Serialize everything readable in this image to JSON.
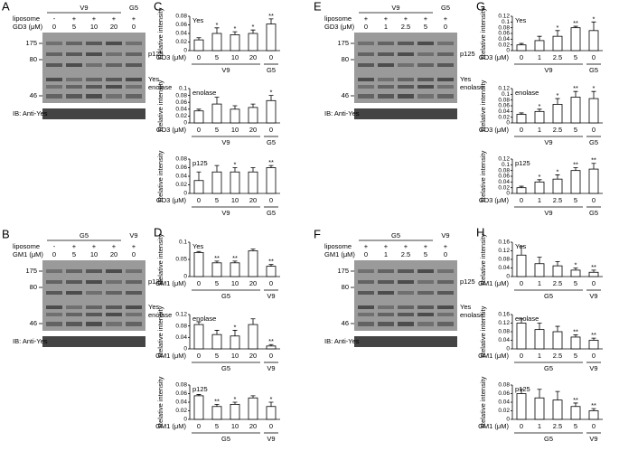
{
  "blots": [
    {
      "letter": "A",
      "header": [
        {
          "label": "V9",
          "count": 4
        },
        {
          "label": "G5",
          "count": 1
        }
      ],
      "rows": [
        {
          "label": "liposome",
          "cells": [
            "-",
            "+",
            "+",
            "+",
            "+"
          ]
        },
        {
          "label": "GD3 (μM)",
          "cells": [
            "0",
            "5",
            "10",
            "20",
            "0"
          ]
        }
      ],
      "markers": [
        "175",
        "80",
        "46"
      ],
      "bands": [
        "p125",
        "Yes",
        "enolase"
      ],
      "ib": "IB: Anti-Yes"
    },
    {
      "letter": "B",
      "header": [
        {
          "label": "G5",
          "count": 4
        },
        {
          "label": "V9",
          "count": 1
        }
      ],
      "rows": [
        {
          "label": "liposome",
          "cells": [
            "-",
            "+",
            "+",
            "+",
            "+"
          ]
        },
        {
          "label": "GM1 (μM)",
          "cells": [
            "0",
            "5",
            "10",
            "20",
            "0"
          ]
        }
      ],
      "markers": [
        "175",
        "80",
        "46"
      ],
      "bands": [
        "p125",
        "Yes",
        "enolase"
      ],
      "ib": "IB: Anti-Yes"
    },
    {
      "letter": "E",
      "header": [
        {
          "label": "V9",
          "count": 4
        },
        {
          "label": "G5",
          "count": 1
        }
      ],
      "rows": [
        {
          "label": "liposome",
          "cells": [
            "+",
            "+",
            "+",
            "+",
            "+"
          ]
        },
        {
          "label": "GD3 (μM)",
          "cells": [
            "0",
            "1",
            "2.5",
            "5",
            "0"
          ]
        }
      ],
      "markers": [
        "175",
        "80",
        "46"
      ],
      "bands": [
        "p125",
        "Yes",
        "enolase"
      ],
      "ib": "IB: Anti-Yes"
    },
    {
      "letter": "F",
      "header": [
        {
          "label": "G5",
          "count": 4
        },
        {
          "label": "V9",
          "count": 1
        }
      ],
      "rows": [
        {
          "label": "liposome",
          "cells": [
            "+",
            "+",
            "+",
            "+",
            "+"
          ]
        },
        {
          "label": "GM1 (μM)",
          "cells": [
            "0",
            "1",
            "2.5",
            "5",
            "0"
          ]
        }
      ],
      "markers": [
        "175",
        "80",
        "46"
      ],
      "bands": [
        "p125",
        "Yes",
        "enolase"
      ],
      "ib": "IB: Anti-Yes"
    }
  ],
  "chart_data": [
    {
      "type": "bar",
      "panel": "C",
      "ylabel": "Relative intensity",
      "label": "Yes",
      "xlabel": "GD3 (μM)",
      "categories": [
        "0",
        "5",
        "10",
        "20",
        "0"
      ],
      "groups": [
        {
          "label": "V9",
          "count": 4
        },
        {
          "label": "G5",
          "count": 1
        }
      ],
      "values": [
        0.025,
        0.04,
        0.037,
        0.04,
        0.062
      ],
      "errors": [
        0.005,
        0.013,
        0.007,
        0.008,
        0.012
      ],
      "significance": [
        null,
        "*",
        "*",
        "*",
        "**"
      ],
      "ylim": [
        0,
        0.08
      ],
      "yticks": [
        0,
        0.02,
        0.04,
        0.06,
        0.08
      ],
      "color": "#ffffff"
    },
    {
      "type": "bar",
      "ylabel": "Relative intensity",
      "label": "enolase",
      "xlabel": "GD3 (μM)",
      "categories": [
        "0",
        "5",
        "10",
        "20",
        "0"
      ],
      "groups": [
        {
          "label": "V9",
          "count": 4
        },
        {
          "label": "G5",
          "count": 1
        }
      ],
      "values": [
        0.035,
        0.055,
        0.04,
        0.045,
        0.065
      ],
      "errors": [
        0.005,
        0.02,
        0.01,
        0.01,
        0.015
      ],
      "significance": [
        null,
        null,
        null,
        null,
        "*"
      ],
      "ylim": [
        0,
        0.1
      ],
      "yticks": [
        0,
        0.02,
        0.04,
        0.06,
        0.08,
        0.1
      ],
      "color": "#ffffff"
    },
    {
      "type": "bar",
      "ylabel": "Relative intensity",
      "label": "p125",
      "xlabel": "GD3 (μM)",
      "categories": [
        "0",
        "5",
        "10",
        "20",
        "0"
      ],
      "groups": [
        {
          "label": "V9",
          "count": 4
        },
        {
          "label": "G5",
          "count": 1
        }
      ],
      "values": [
        0.03,
        0.05,
        0.05,
        0.05,
        0.06
      ],
      "errors": [
        0.02,
        0.015,
        0.01,
        0.01,
        0.005
      ],
      "significance": [
        null,
        null,
        "*",
        null,
        "**"
      ],
      "ylim": [
        0,
        0.08
      ],
      "yticks": [
        0,
        0.02,
        0.04,
        0.06,
        0.08
      ],
      "color": "#ffffff"
    },
    {
      "type": "bar",
      "panel": "G",
      "ylabel": "Relative intensity",
      "label": "Yes",
      "xlabel": "GD3 (μM)",
      "categories": [
        "0",
        "1",
        "2.5",
        "5",
        "0"
      ],
      "groups": [
        {
          "label": "V9",
          "count": 4
        },
        {
          "label": "G5",
          "count": 1
        }
      ],
      "values": [
        0.02,
        0.035,
        0.05,
        0.08,
        0.07
      ],
      "errors": [
        0.005,
        0.015,
        0.02,
        0.005,
        0.03
      ],
      "significance": [
        null,
        null,
        "*",
        "**",
        "*"
      ],
      "ylim": [
        0,
        0.12
      ],
      "yticks": [
        0,
        0.02,
        0.04,
        0.06,
        0.08,
        0.1,
        0.12
      ],
      "color": "#ffffff"
    },
    {
      "type": "bar",
      "ylabel": "Relative intensity",
      "label": "enolase",
      "xlabel": "GD3 (μM)",
      "categories": [
        "0",
        "1",
        "2.5",
        "5",
        "0"
      ],
      "groups": [
        {
          "label": "V9",
          "count": 4
        },
        {
          "label": "G5",
          "count": 1
        }
      ],
      "values": [
        0.03,
        0.04,
        0.065,
        0.09,
        0.085
      ],
      "errors": [
        0.005,
        0.008,
        0.02,
        0.02,
        0.025
      ],
      "significance": [
        null,
        "*",
        "*",
        "**",
        "*"
      ],
      "ylim": [
        0,
        0.12
      ],
      "yticks": [
        0,
        0.02,
        0.04,
        0.06,
        0.08,
        0.1,
        0.12
      ],
      "color": "#ffffff"
    },
    {
      "type": "bar",
      "ylabel": "Relative intensity",
      "label": "p125",
      "xlabel": "GD3 (μM)",
      "categories": [
        "0",
        "1",
        "2.5",
        "5",
        "0"
      ],
      "groups": [
        {
          "label": "V9",
          "count": 4
        },
        {
          "label": "G5",
          "count": 1
        }
      ],
      "values": [
        0.02,
        0.04,
        0.05,
        0.08,
        0.085
      ],
      "errors": [
        0.005,
        0.008,
        0.015,
        0.01,
        0.02
      ],
      "significance": [
        null,
        "*",
        "*",
        "**",
        "**"
      ],
      "ylim": [
        0,
        0.12
      ],
      "yticks": [
        0,
        0.02,
        0.04,
        0.06,
        0.08,
        0.1,
        0.12
      ],
      "color": "#ffffff"
    },
    {
      "type": "bar",
      "panel": "D",
      "ylabel": "Relative intensity",
      "label": "Yes",
      "xlabel": "GM1 (μM)",
      "categories": [
        "0",
        "5",
        "10",
        "20",
        "0"
      ],
      "groups": [
        {
          "label": "G5",
          "count": 4
        },
        {
          "label": "V9",
          "count": 1
        }
      ],
      "values": [
        0.07,
        0.04,
        0.04,
        0.075,
        0.03
      ],
      "errors": [
        0.003,
        0.005,
        0.005,
        0.005,
        0.005
      ],
      "significance": [
        null,
        "**",
        "**",
        null,
        "**"
      ],
      "ylim": [
        0,
        0.1
      ],
      "yticks": [
        0,
        0.05,
        0.1
      ],
      "color": "#ffffff"
    },
    {
      "type": "bar",
      "ylabel": "Relative intensity",
      "label": "enolase",
      "xlabel": "GM1 (μM)",
      "categories": [
        "0",
        "5",
        "10",
        "20",
        "0"
      ],
      "groups": [
        {
          "label": "G5",
          "count": 4
        },
        {
          "label": "V9",
          "count": 1
        }
      ],
      "values": [
        0.085,
        0.05,
        0.045,
        0.085,
        0.01
      ],
      "errors": [
        0.01,
        0.015,
        0.02,
        0.02,
        0.005
      ],
      "significance": [
        null,
        null,
        "*",
        null,
        "**"
      ],
      "ylim": [
        0,
        0.12
      ],
      "yticks": [
        0,
        0.04,
        0.08,
        0.12
      ],
      "color": "#ffffff"
    },
    {
      "type": "bar",
      "ylabel": "Relative intensity",
      "label": "p125",
      "xlabel": "GM1 (μM)",
      "categories": [
        "0",
        "5",
        "10",
        "20",
        "0"
      ],
      "groups": [
        {
          "label": "G5",
          "count": 4
        },
        {
          "label": "V9",
          "count": 1
        }
      ],
      "values": [
        0.055,
        0.03,
        0.035,
        0.05,
        0.03
      ],
      "errors": [
        0.003,
        0.005,
        0.005,
        0.005,
        0.01
      ],
      "significance": [
        null,
        "**",
        "*",
        null,
        "*"
      ],
      "ylim": [
        0,
        0.08
      ],
      "yticks": [
        0,
        0.02,
        0.04,
        0.06,
        0.08
      ],
      "color": "#ffffff"
    },
    {
      "type": "bar",
      "panel": "H",
      "ylabel": "Relative intensity",
      "label": "Yes",
      "xlabel": "GM1 (μM)",
      "categories": [
        "0",
        "1",
        "2.5",
        "5",
        "0"
      ],
      "groups": [
        {
          "label": "G5",
          "count": 4
        },
        {
          "label": "V9",
          "count": 1
        }
      ],
      "values": [
        0.1,
        0.06,
        0.05,
        0.03,
        0.02
      ],
      "errors": [
        0.04,
        0.03,
        0.02,
        0.01,
        0.01
      ],
      "significance": [
        null,
        null,
        null,
        "*",
        "**"
      ],
      "ylim": [
        0,
        0.16
      ],
      "yticks": [
        0,
        0.04,
        0.08,
        0.12,
        0.16
      ],
      "color": "#ffffff"
    },
    {
      "type": "bar",
      "ylabel": "Relative intensity",
      "label": "enolase",
      "xlabel": "GM1 (μM)",
      "categories": [
        "0",
        "1",
        "2.5",
        "5",
        "0"
      ],
      "groups": [
        {
          "label": "G5",
          "count": 4
        },
        {
          "label": "V9",
          "count": 1
        }
      ],
      "values": [
        0.12,
        0.09,
        0.08,
        0.055,
        0.04
      ],
      "errors": [
        0.02,
        0.03,
        0.025,
        0.01,
        0.01
      ],
      "significance": [
        null,
        null,
        null,
        "**",
        "**"
      ],
      "ylim": [
        0,
        0.16
      ],
      "yticks": [
        0,
        0.04,
        0.08,
        0.12,
        0.16
      ],
      "color": "#ffffff"
    },
    {
      "type": "bar",
      "ylabel": "Relative intensity",
      "label": "p125",
      "xlabel": "GM1 (μM)",
      "categories": [
        "0",
        "1",
        "2.5",
        "5",
        "0"
      ],
      "groups": [
        {
          "label": "G5",
          "count": 4
        },
        {
          "label": "V9",
          "count": 1
        }
      ],
      "values": [
        0.06,
        0.05,
        0.045,
        0.03,
        0.02
      ],
      "errors": [
        0.01,
        0.02,
        0.02,
        0.008,
        0.005
      ],
      "significance": [
        null,
        null,
        null,
        "**",
        "**"
      ],
      "ylim": [
        0,
        0.08
      ],
      "yticks": [
        0,
        0.02,
        0.04,
        0.06,
        0.08
      ],
      "color": "#ffffff"
    }
  ]
}
